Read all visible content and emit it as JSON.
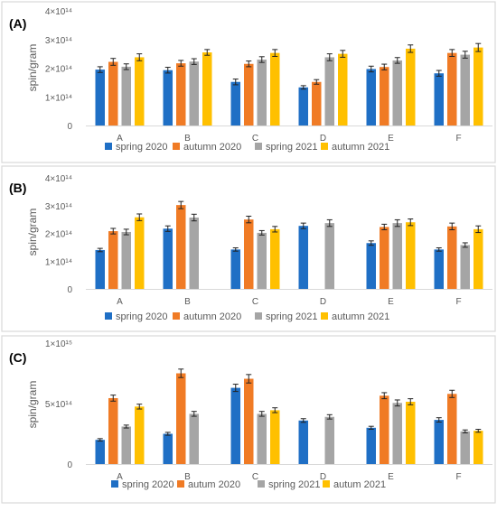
{
  "colors": {
    "spring_2020": "#1f6fc5",
    "autumn_2020": "#f07b25",
    "spring_2021": "#a5a5a5",
    "autumn_2021": "#ffc000",
    "frame": "#d9d9d9",
    "axis": "#d9d9d9"
  },
  "chart_data": [
    {
      "panel_label": "(A)",
      "type": "bar",
      "ylabel": "spin/gram",
      "xlabel": "",
      "categories": [
        "A",
        "B",
        "C",
        "D",
        "E",
        "F"
      ],
      "ylim": [
        0,
        400000000000000.0
      ],
      "yticks": [
        {
          "value": 0,
          "label": "0"
        },
        {
          "value": 100000000000000.0,
          "label": "1×10¹⁴"
        },
        {
          "value": 200000000000000.0,
          "label": "2×10¹⁴"
        },
        {
          "value": 300000000000000.0,
          "label": "3×10¹⁴"
        },
        {
          "value": 400000000000000.0,
          "label": "4×10¹⁴"
        }
      ],
      "grid": false,
      "legend_position": "bottom",
      "series": [
        {
          "name": "spring 2020",
          "color_key": "spring_2020",
          "values": [
            195000000000000.0,
            193000000000000.0,
            152000000000000.0,
            133000000000000.0,
            197000000000000.0,
            182000000000000.0
          ],
          "errors": [
            10000000000000.0,
            10000000000000.0,
            10000000000000.0,
            6000000000000.0,
            10000000000000.0,
            10000000000000.0
          ]
        },
        {
          "name": "autumn  2020",
          "color_key": "autumn_2020",
          "values": [
            222000000000000.0,
            217000000000000.0,
            215000000000000.0,
            152000000000000.0,
            204000000000000.0,
            253000000000000.0
          ],
          "errors": [
            12000000000000.0,
            10000000000000.0,
            10000000000000.0,
            8000000000000.0,
            10000000000000.0,
            12000000000000.0
          ]
        },
        {
          "name": "spring 2021",
          "color_key": "spring_2021",
          "values": [
            205000000000000.0,
            223000000000000.0,
            230000000000000.0,
            238000000000000.0,
            227000000000000.0,
            247000000000000.0
          ],
          "errors": [
            10000000000000.0,
            10000000000000.0,
            10000000000000.0,
            12000000000000.0,
            10000000000000.0,
            12000000000000.0
          ]
        },
        {
          "name": "autumn 2021",
          "color_key": "autumn_2021",
          "values": [
            238000000000000.0,
            255000000000000.0,
            253000000000000.0,
            250000000000000.0,
            268000000000000.0,
            272000000000000.0
          ],
          "errors": [
            12000000000000.0,
            10000000000000.0,
            12000000000000.0,
            12000000000000.0,
            13000000000000.0,
            14000000000000.0
          ]
        }
      ]
    },
    {
      "panel_label": "(B)",
      "type": "bar",
      "ylabel": "spin/gram",
      "xlabel": "",
      "categories": [
        "A",
        "B",
        "C",
        "D",
        "E",
        "F"
      ],
      "ylim": [
        0,
        400000000000000.0
      ],
      "yticks": [
        {
          "value": 0,
          "label": "0"
        },
        {
          "value": 100000000000000.0,
          "label": "1×10¹⁴"
        },
        {
          "value": 200000000000000.0,
          "label": "2×10¹⁴"
        },
        {
          "value": 300000000000000.0,
          "label": "3×10¹⁴"
        },
        {
          "value": 400000000000000.0,
          "label": "4×10¹⁴"
        }
      ],
      "grid": false,
      "legend_position": "bottom",
      "series": [
        {
          "name": "spring 2020",
          "color_key": "spring_2020",
          "values": [
            140000000000000.0,
            217000000000000.0,
            142000000000000.0,
            227000000000000.0,
            165000000000000.0,
            142000000000000.0
          ],
          "errors": [
            6000000000000.0,
            10000000000000.0,
            6000000000000.0,
            10000000000000.0,
            8000000000000.0,
            6000000000000.0
          ]
        },
        {
          "name": "autumn 2020",
          "color_key": "autumn_2020",
          "values": [
            208000000000000.0,
            302000000000000.0,
            250000000000000.0,
            null,
            223000000000000.0,
            225000000000000.0
          ],
          "errors": [
            10000000000000.0,
            13000000000000.0,
            12000000000000.0,
            null,
            10000000000000.0,
            12000000000000.0
          ]
        },
        {
          "name": "spring 2021",
          "color_key": "spring_2021",
          "values": [
            205000000000000.0,
            257000000000000.0,
            202000000000000.0,
            237000000000000.0,
            237000000000000.0,
            158000000000000.0
          ],
          "errors": [
            10000000000000.0,
            12000000000000.0,
            8000000000000.0,
            12000000000000.0,
            12000000000000.0,
            8000000000000.0
          ]
        },
        {
          "name": "autumn 2021",
          "color_key": "autumn_2021",
          "values": [
            258000000000000.0,
            null,
            215000000000000.0,
            null,
            240000000000000.0,
            215000000000000.0
          ],
          "errors": [
            12000000000000.0,
            null,
            10000000000000.0,
            null,
            12000000000000.0,
            12000000000000.0
          ]
        }
      ]
    },
    {
      "panel_label": "(C)",
      "type": "bar",
      "ylabel": "spin/gram",
      "xlabel": "",
      "categories": [
        "A",
        "B",
        "C",
        "D",
        "E",
        "F"
      ],
      "ylim": [
        0,
        1000000000000000.0
      ],
      "yticks": [
        {
          "value": 0,
          "label": "0"
        },
        {
          "value": 500000000000000.0,
          "label": "5×10¹⁴"
        },
        {
          "value": 1000000000000000.0,
          "label": "1×10¹⁵"
        }
      ],
      "grid": false,
      "legend_position": "bottom",
      "series": [
        {
          "name": "spring 2020",
          "color_key": "spring_2020",
          "values": [
            200000000000000.0,
            250000000000000.0,
            630000000000000.0,
            360000000000000.0,
            300000000000000.0,
            365000000000000.0
          ],
          "errors": [
            10000000000000.0,
            12000000000000.0,
            30000000000000.0,
            15000000000000.0,
            12000000000000.0,
            18000000000000.0
          ]
        },
        {
          "name": "autum 2020",
          "color_key": "autumn_2020",
          "values": [
            545000000000000.0,
            750000000000000.0,
            705000000000000.0,
            null,
            565000000000000.0,
            580000000000000.0
          ],
          "errors": [
            25000000000000.0,
            35000000000000.0,
            35000000000000.0,
            null,
            25000000000000.0,
            30000000000000.0
          ]
        },
        {
          "name": "spring 2021",
          "color_key": "spring_2021",
          "values": [
            310000000000000.0,
            415000000000000.0,
            415000000000000.0,
            390000000000000.0,
            505000000000000.0,
            270000000000000.0
          ],
          "errors": [
            12000000000000.0,
            20000000000000.0,
            20000000000000.0,
            18000000000000.0,
            25000000000000.0,
            12000000000000.0
          ]
        },
        {
          "name": "autum 2021",
          "color_key": "autumn_2021",
          "values": [
            475000000000000.0,
            null,
            445000000000000.0,
            null,
            515000000000000.0,
            275000000000000.0
          ],
          "errors": [
            20000000000000.0,
            null,
            20000000000000.0,
            null,
            25000000000000.0,
            12000000000000.0
          ]
        }
      ]
    }
  ]
}
